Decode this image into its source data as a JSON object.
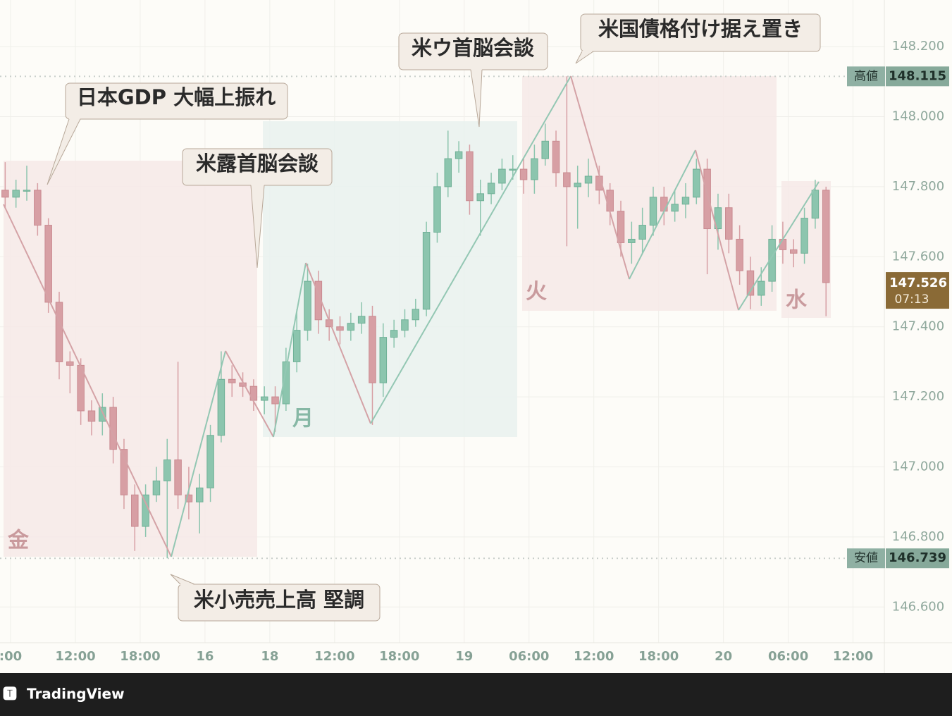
{
  "chart_data": {
    "type": "candlestick",
    "x": [
      -0.5,
      0.5,
      1.5,
      2.5,
      3.5,
      4.5,
      5.5,
      6.5,
      7.5,
      8.5,
      9.5,
      10.5,
      11.5,
      12.5,
      13.5,
      14.5,
      15.5,
      16.5,
      17.5,
      18.5,
      19.5,
      20.5,
      21.5,
      22.5,
      23.5,
      24.5,
      25.5,
      26.5,
      27.5,
      28.5,
      29.5,
      30.5,
      31.5,
      32.5,
      33.5,
      34.5,
      35.5,
      36.5,
      37.5,
      38.5,
      39.5,
      40.5,
      41.5,
      42.5,
      43.5,
      44.5,
      45.5,
      46.5,
      47.5,
      48.5,
      49.5,
      50.5,
      51.5,
      52.5,
      53.5,
      54.5,
      55.5,
      56.5,
      57.5,
      58.5,
      59.5,
      60.5,
      61.5,
      62.5,
      63.5,
      64.5,
      65.5,
      66.5,
      67.5,
      68.5,
      69.5,
      70.5,
      71.5,
      72.5,
      73.5,
      74.5,
      75.5
    ],
    "open": [
      147.79,
      147.77,
      147.79,
      147.79,
      147.69,
      147.47,
      147.3,
      147.29,
      147.16,
      147.13,
      147.17,
      147.05,
      146.92,
      146.83,
      146.92,
      146.96,
      147.02,
      146.92,
      146.9,
      146.94,
      147.09,
      147.25,
      147.24,
      147.23,
      147.19,
      147.2,
      147.18,
      147.3,
      147.39,
      147.53,
      147.42,
      147.4,
      147.39,
      147.41,
      147.43,
      147.24,
      147.37,
      147.39,
      147.42,
      147.45,
      147.67,
      147.8,
      147.88,
      147.9,
      147.76,
      147.78,
      147.81,
      147.85,
      147.85,
      147.82,
      147.88,
      147.93,
      147.84,
      147.8,
      147.81,
      147.83,
      147.79,
      147.73,
      147.64,
      147.65,
      147.69,
      147.77,
      147.73,
      147.75,
      147.77,
      147.85,
      147.68,
      147.74,
      147.65,
      147.56,
      147.49,
      147.53,
      147.65,
      147.62,
      147.61,
      147.71,
      147.79
    ],
    "high": [
      147.87,
      147.82,
      147.86,
      147.81,
      147.71,
      147.5,
      147.33,
      147.31,
      147.19,
      147.21,
      147.2,
      147.08,
      146.95,
      146.95,
      147.0,
      147.08,
      147.3,
      147.0,
      146.98,
      147.12,
      147.33,
      147.29,
      147.27,
      147.25,
      147.23,
      147.23,
      147.34,
      147.45,
      147.58,
      147.56,
      147.45,
      147.43,
      147.44,
      147.47,
      147.46,
      147.41,
      147.42,
      147.45,
      147.48,
      147.7,
      147.84,
      147.96,
      147.93,
      147.92,
      147.82,
      147.84,
      147.88,
      147.89,
      147.88,
      147.92,
      147.98,
      147.96,
      148.115,
      147.86,
      147.88,
      147.86,
      147.81,
      147.76,
      147.7,
      147.74,
      147.8,
      147.8,
      147.79,
      147.81,
      147.88,
      147.88,
      147.78,
      147.78,
      147.69,
      147.6,
      147.57,
      147.69,
      147.7,
      147.65,
      147.74,
      147.82,
      147.8
    ],
    "low": [
      147.74,
      147.74,
      147.76,
      147.66,
      147.44,
      147.25,
      147.21,
      147.12,
      147.09,
      147.09,
      147.01,
      146.88,
      146.76,
      146.8,
      146.9,
      146.739,
      146.88,
      146.85,
      146.81,
      146.9,
      147.07,
      147.2,
      147.2,
      147.16,
      147.15,
      147.1,
      147.16,
      147.27,
      147.36,
      147.38,
      147.36,
      147.35,
      147.36,
      147.38,
      147.12,
      147.2,
      147.34,
      147.37,
      147.4,
      147.43,
      147.64,
      147.77,
      147.84,
      147.72,
      147.66,
      147.75,
      147.79,
      147.82,
      147.78,
      147.78,
      147.86,
      147.8,
      147.63,
      147.68,
      147.77,
      147.75,
      147.69,
      147.6,
      147.58,
      147.61,
      147.66,
      147.69,
      147.7,
      147.71,
      147.75,
      147.55,
      147.62,
      147.61,
      147.52,
      147.45,
      147.46,
      147.5,
      147.58,
      147.57,
      147.58,
      147.68,
      147.43
    ],
    "close": [
      147.77,
      147.79,
      147.79,
      147.69,
      147.47,
      147.3,
      147.29,
      147.16,
      147.13,
      147.17,
      147.05,
      146.92,
      146.83,
      146.92,
      146.96,
      147.02,
      146.92,
      146.9,
      146.94,
      147.09,
      147.25,
      147.24,
      147.23,
      147.19,
      147.2,
      147.18,
      147.3,
      147.39,
      147.53,
      147.42,
      147.4,
      147.39,
      147.41,
      147.43,
      147.24,
      147.37,
      147.39,
      147.42,
      147.45,
      147.67,
      147.8,
      147.88,
      147.9,
      147.76,
      147.78,
      147.81,
      147.85,
      147.85,
      147.82,
      147.88,
      147.93,
      147.84,
      147.8,
      147.81,
      147.83,
      147.79,
      147.73,
      147.64,
      147.65,
      147.69,
      147.77,
      147.73,
      147.75,
      147.77,
      147.85,
      147.68,
      147.74,
      147.65,
      147.56,
      147.49,
      147.53,
      147.65,
      147.62,
      147.61,
      147.71,
      147.79,
      147.526
    ],
    "up_color": "#8cc5ae",
    "down_color": "#d79fa4",
    "xlim": [
      -0.98,
      80.9
    ],
    "xticks": [
      {
        "value": 0,
        "label": ":00"
      },
      {
        "value": 6,
        "label": "12:00"
      },
      {
        "value": 12,
        "label": "18:00"
      },
      {
        "value": 18,
        "label": "16"
      },
      {
        "value": 24,
        "label": "18"
      },
      {
        "value": 30,
        "label": "12:00"
      },
      {
        "value": 36,
        "label": "18:00"
      },
      {
        "value": 42,
        "label": "19"
      },
      {
        "value": 48,
        "label": "06:00"
      },
      {
        "value": 54,
        "label": "12:00"
      },
      {
        "value": 60,
        "label": "18:00"
      },
      {
        "value": 66,
        "label": "20"
      },
      {
        "value": 72,
        "label": "06:00"
      },
      {
        "value": 78,
        "label": "12:00"
      }
    ],
    "ylim": [
      146.498,
      148.333
    ],
    "yticks": [
      {
        "value": 146.6,
        "label": "146.600"
      },
      {
        "value": 146.8,
        "label": "146.800"
      },
      {
        "value": 147,
        "label": "147.000"
      },
      {
        "value": 147.2,
        "label": "147.200"
      },
      {
        "value": 147.4,
        "label": "147.400"
      },
      {
        "value": 147.6,
        "label": "147.600"
      },
      {
        "value": 147.8,
        "label": "147.800"
      },
      {
        "value": 148,
        "label": "148.000"
      },
      {
        "value": 148.2,
        "label": "148.200"
      }
    ],
    "grid": true,
    "high_marker": {
      "label": "高値",
      "value": 148.115
    },
    "low_marker": {
      "label": "安値",
      "value": 146.739
    },
    "last_price": {
      "value": 147.526,
      "countdown": "07:13"
    },
    "annotations": [
      "日本GDP 大幅上振れ",
      "米露首脳会談",
      "米ウ首脳会談",
      "米国債格付け据え置き",
      "米小売売上高 堅調"
    ],
    "sessions": [
      "金",
      "月",
      "火",
      "水"
    ]
  },
  "footer": {
    "brand": "TradingView"
  }
}
